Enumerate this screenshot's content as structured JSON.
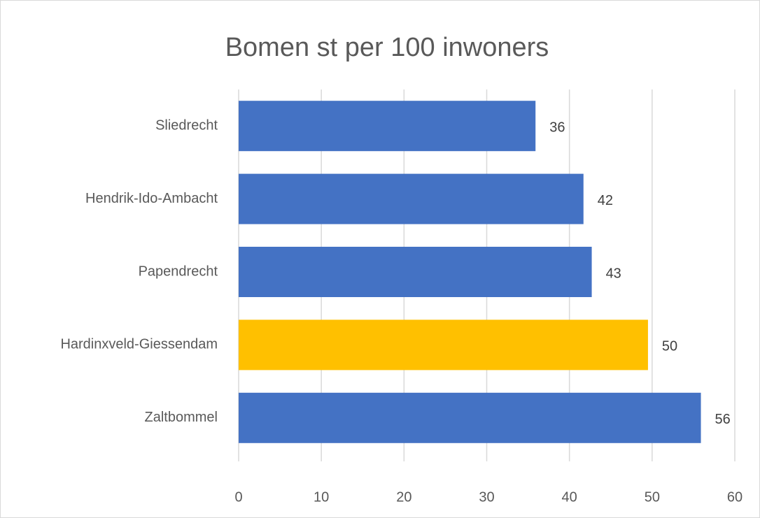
{
  "chart_data": {
    "type": "hbar",
    "title": "Bomen st per 100 inwoners",
    "categories": [
      "Sliedrecht",
      "Hendrik-Ido-Ambacht",
      "Papendrecht",
      "Hardinxveld-Giessendam",
      "Zaltbommel"
    ],
    "values": [
      35.9,
      41.7,
      42.7,
      49.5,
      55.9
    ],
    "value_labels": [
      "36",
      "42",
      "43",
      "50",
      "56"
    ],
    "colors": [
      "#4472c4",
      "#4472c4",
      "#4472c4",
      "#ffc000",
      "#4472c4"
    ],
    "xlim": [
      0,
      60
    ],
    "xticks": [
      0,
      10,
      20,
      30,
      40,
      50,
      60
    ],
    "grid": true
  }
}
